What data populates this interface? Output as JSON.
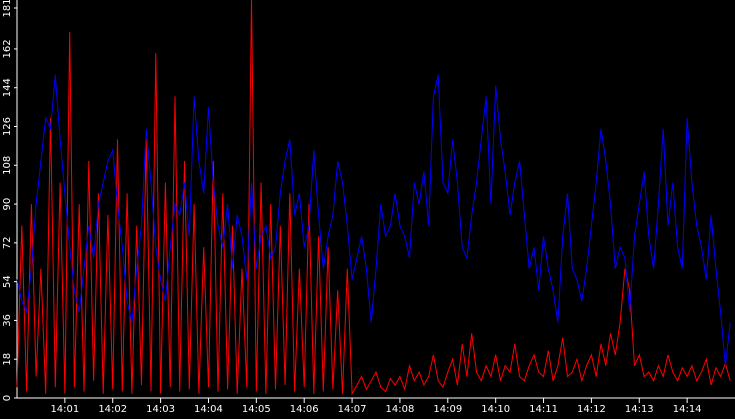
{
  "chart_data": {
    "type": "line",
    "background": "#000000",
    "x": [
      0,
      0.1,
      0.2,
      0.3,
      0.4,
      0.5,
      0.6,
      0.7,
      0.8,
      0.9,
      1,
      1.1,
      1.2,
      1.3,
      1.4,
      1.5,
      1.6,
      1.7,
      1.8,
      1.9,
      2,
      2.1,
      2.2,
      2.3,
      2.4,
      2.5,
      2.6,
      2.7,
      2.8,
      2.9,
      3,
      3.1,
      3.2,
      3.3,
      3.4,
      3.5,
      3.6,
      3.7,
      3.8,
      3.9,
      4,
      4.1,
      4.2,
      4.3,
      4.4,
      4.5,
      4.6,
      4.7,
      4.8,
      4.9,
      5,
      5.1,
      5.2,
      5.3,
      5.4,
      5.5,
      5.6,
      5.7,
      5.8,
      5.9,
      6,
      6.1,
      6.2,
      6.3,
      6.4,
      6.5,
      6.6,
      6.7,
      6.8,
      6.9,
      7,
      7.1,
      7.2,
      7.3,
      7.4,
      7.5,
      7.6,
      7.7,
      7.8,
      7.9,
      8,
      8.1,
      8.2,
      8.3,
      8.4,
      8.5,
      8.6,
      8.7,
      8.8,
      8.9,
      9,
      9.1,
      9.2,
      9.3,
      9.4,
      9.5,
      9.6,
      9.7,
      9.8,
      9.9,
      10,
      10.1,
      10.2,
      10.3,
      10.4,
      10.5,
      10.6,
      10.7,
      10.8,
      10.9,
      11,
      11.1,
      11.2,
      11.3,
      11.4,
      11.5,
      11.6,
      11.7,
      11.8,
      11.9,
      12,
      12.1,
      12.2,
      12.3,
      12.4,
      12.5,
      12.6,
      12.7,
      12.8,
      12.9,
      13,
      13.1,
      13.2,
      13.3,
      13.4,
      13.5,
      13.6,
      13.7,
      13.8,
      13.9,
      14,
      14.1,
      14.2,
      14.3,
      14.4,
      14.5,
      14.6,
      14.7,
      14.8,
      14.9
    ],
    "series": [
      {
        "color": "#0000ff",
        "values": [
          55,
          45,
          40,
          60,
          90,
          110,
          130,
          125,
          150,
          120,
          95,
          70,
          50,
          40,
          60,
          80,
          65,
          90,
          100,
          110,
          115,
          90,
          70,
          45,
          35,
          60,
          80,
          125,
          100,
          70,
          55,
          45,
          70,
          90,
          85,
          100,
          75,
          140,
          110,
          95,
          135,
          100,
          80,
          70,
          90,
          60,
          85,
          75,
          55,
          100,
          60,
          75,
          80,
          65,
          70,
          95,
          110,
          120,
          85,
          95,
          70,
          80,
          115,
          85,
          60,
          75,
          85,
          110,
          100,
          80,
          55,
          65,
          75,
          60,
          35,
          60,
          90,
          75,
          80,
          95,
          80,
          75,
          65,
          100,
          90,
          105,
          80,
          140,
          150,
          100,
          95,
          120,
          100,
          70,
          65,
          85,
          100,
          120,
          140,
          90,
          145,
          120,
          105,
          85,
          100,
          110,
          85,
          60,
          70,
          50,
          75,
          60,
          50,
          35,
          75,
          95,
          60,
          55,
          45,
          60,
          80,
          100,
          125,
          110,
          90,
          60,
          70,
          65,
          40,
          75,
          90,
          105,
          75,
          60,
          90,
          125,
          80,
          100,
          70,
          60,
          130,
          100,
          80,
          70,
          55,
          85,
          60,
          40,
          15,
          35
        ]
      },
      {
        "color": "#ff0000",
        "values": [
          5,
          80,
          3,
          90,
          10,
          60,
          2,
          130,
          5,
          100,
          2,
          170,
          5,
          90,
          3,
          110,
          8,
          95,
          2,
          85,
          4,
          120,
          3,
          95,
          2,
          80,
          6,
          120,
          3,
          160,
          2,
          100,
          5,
          140,
          3,
          110,
          4,
          90,
          2,
          70,
          5,
          110,
          3,
          95,
          4,
          80,
          2,
          60,
          5,
          185,
          3,
          100,
          2,
          90,
          4,
          80,
          6,
          95,
          3,
          60,
          5,
          90,
          2,
          75,
          3,
          70,
          4,
          50,
          2,
          60,
          2,
          6,
          10,
          4,
          8,
          12,
          5,
          3,
          9,
          6,
          10,
          4,
          15,
          8,
          12,
          6,
          10,
          20,
          8,
          5,
          12,
          18,
          6,
          25,
          10,
          30,
          12,
          8,
          15,
          10,
          20,
          8,
          15,
          12,
          25,
          10,
          8,
          15,
          20,
          12,
          10,
          22,
          8,
          15,
          28,
          10,
          12,
          18,
          8,
          15,
          20,
          10,
          25,
          15,
          30,
          20,
          35,
          60,
          50,
          15,
          20,
          10,
          12,
          8,
          15,
          10,
          20,
          12,
          8,
          14,
          10,
          15,
          8,
          12,
          18,
          6,
          14,
          10,
          16,
          8
        ]
      }
    ],
    "xlim": [
      0,
      15
    ],
    "xticks": [
      {
        "value": 1,
        "label": "14:01"
      },
      {
        "value": 2,
        "label": "14:02"
      },
      {
        "value": 3,
        "label": "14:03"
      },
      {
        "value": 4,
        "label": "14:04"
      },
      {
        "value": 5,
        "label": "14:05"
      },
      {
        "value": 6,
        "label": "14:06"
      },
      {
        "value": 7,
        "label": "14:07"
      },
      {
        "value": 8,
        "label": "14:08"
      },
      {
        "value": 9,
        "label": "14:09"
      },
      {
        "value": 10,
        "label": "14:10"
      },
      {
        "value": 11,
        "label": "14:11"
      },
      {
        "value": 12,
        "label": "14:12"
      },
      {
        "value": 13,
        "label": "14:13"
      },
      {
        "value": 14,
        "label": "14:14"
      }
    ],
    "ylim": [
      0,
      181
    ],
    "yticks": [
      0,
      18,
      36,
      54,
      72,
      90,
      108,
      126,
      144,
      162,
      181
    ]
  }
}
